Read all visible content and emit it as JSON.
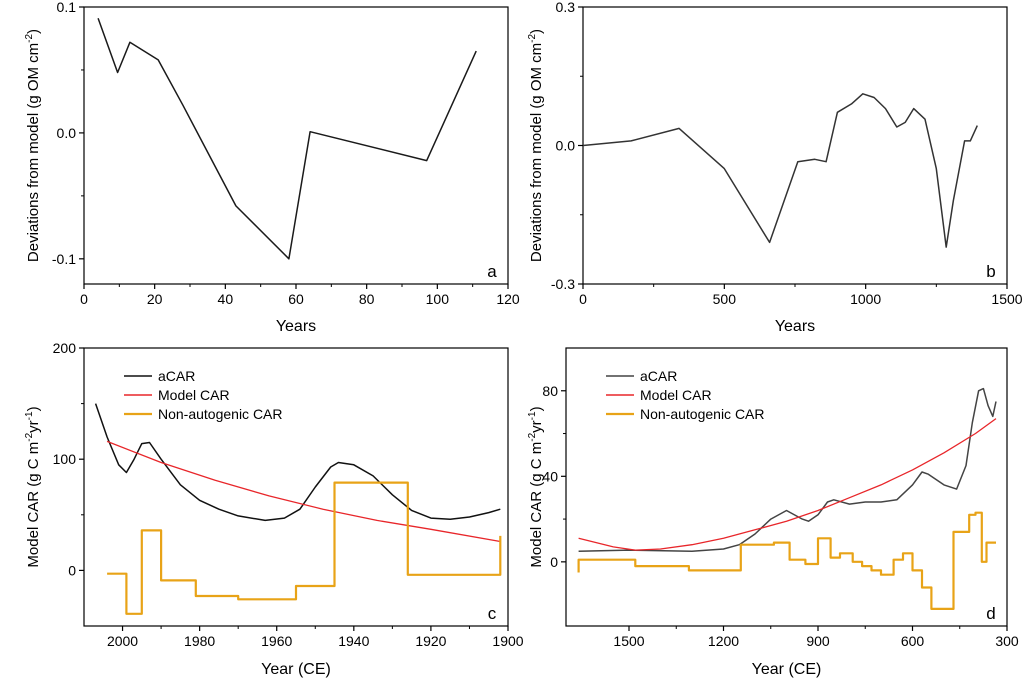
{
  "chart_data": [
    {
      "panel": "a",
      "type": "line",
      "xlabel": "Years",
      "ylabel": "Deviations from model (g OM cm",
      "ylabel_sup": "-2",
      "ylabel_end": ")",
      "xlim": [
        0,
        120
      ],
      "ylim": [
        -0.12,
        0.1
      ],
      "xticks": [
        0,
        20,
        40,
        60,
        80,
        100,
        120
      ],
      "xtick_labels": [
        "0",
        "20",
        "40",
        "60",
        "80",
        "100",
        "120"
      ],
      "yticks": [
        -0.1,
        0.0,
        0.1
      ],
      "ytick_labels": [
        "-0.1",
        "0.0",
        "0.1"
      ],
      "series": [
        {
          "color": "#1a1a1a",
          "x": [
            4,
            9.5,
            13,
            21,
            28,
            43,
            58,
            64,
            97,
            111
          ],
          "y": [
            0.091,
            0.048,
            0.072,
            0.058,
            0.022,
            -0.058,
            -0.1,
            0.001,
            -0.022,
            0.065
          ]
        }
      ]
    },
    {
      "panel": "b",
      "type": "line",
      "xlabel": "Years",
      "ylabel": "Deviations from model (g OM cm",
      "ylabel_sup": "-2",
      "ylabel_end": ")",
      "xlim": [
        0,
        1500
      ],
      "ylim": [
        -0.3,
        0.3
      ],
      "xticks": [
        0,
        500,
        1000,
        1500
      ],
      "xtick_labels": [
        "0",
        "500",
        "1000",
        "1500"
      ],
      "yticks": [
        -0.3,
        0.0,
        0.3
      ],
      "ytick_labels": [
        "-0.3",
        "0.0",
        "0.3"
      ],
      "series": [
        {
          "color": "#333333",
          "x": [
            0,
            170,
            340,
            500,
            660,
            760,
            820,
            860,
            900,
            950,
            990,
            1030,
            1070,
            1110,
            1140,
            1170,
            1210,
            1250,
            1285,
            1310,
            1350,
            1370,
            1395
          ],
          "y": [
            0.0,
            0.01,
            0.037,
            -0.05,
            -0.21,
            -0.035,
            -0.03,
            -0.035,
            0.072,
            0.09,
            0.112,
            0.104,
            0.08,
            0.04,
            0.05,
            0.08,
            0.057,
            -0.05,
            -0.22,
            -0.12,
            0.01,
            0.01,
            0.043
          ]
        }
      ]
    },
    {
      "panel": "c",
      "type": "line",
      "xlabel": "Year (CE)",
      "ylabel": "Model CAR (g C m",
      "ylabel_sup1": "-2",
      "ylabel_mid": "yr",
      "ylabel_sup2": "-1",
      "ylabel_end": ")",
      "xlim": [
        2010,
        1900
      ],
      "x_reversed": true,
      "ylim": [
        -50,
        200
      ],
      "xticks": [
        2000,
        1980,
        1960,
        1940,
        1920,
        1900
      ],
      "xtick_labels": [
        "2000",
        "1980",
        "1960",
        "1940",
        "1920",
        "1900"
      ],
      "yticks": [
        0,
        100,
        200
      ],
      "ytick_labels": [
        "0",
        "100",
        "200"
      ],
      "legend_position": "top-left",
      "series": [
        {
          "name": "aCAR",
          "color": "#111111",
          "x": [
            2007,
            2004,
            2001,
            1999,
            1997,
            1995,
            1993,
            1990,
            1985,
            1980,
            1975,
            1970,
            1963,
            1958,
            1954,
            1950,
            1946,
            1944,
            1940,
            1935,
            1930,
            1925,
            1920,
            1915,
            1910,
            1905,
            1902
          ],
          "y": [
            150,
            120,
            95,
            88,
            100,
            114,
            115,
            100,
            77,
            63,
            55,
            49,
            45,
            47,
            55,
            75,
            93,
            97,
            95,
            85,
            68,
            54,
            47,
            46,
            48,
            52,
            55
          ]
        },
        {
          "name": "Model CAR",
          "color": "#e8262a",
          "x": [
            2004,
            1990,
            1976,
            1962,
            1948,
            1934,
            1920,
            1902
          ],
          "y": [
            116,
            97,
            81,
            67,
            55,
            45,
            37,
            26
          ]
        },
        {
          "name": "Non-autogenic CAR",
          "color": "#e8a317",
          "step": true,
          "x": [
            2004,
            1999,
            1999,
            1995,
            1995,
            1990,
            1990,
            1981,
            1981,
            1970,
            1970,
            1955,
            1955,
            1945,
            1945,
            1926,
            1926,
            1902,
            1902
          ],
          "y": [
            -3,
            -3,
            -39,
            -39,
            36,
            36,
            -9,
            -9,
            -23,
            -23,
            -26,
            -26,
            -14,
            -14,
            79,
            79,
            -4,
            -4,
            31
          ]
        }
      ]
    },
    {
      "panel": "d",
      "type": "line",
      "xlabel": "Year (CE)",
      "ylabel": "Model CAR (g C m",
      "ylabel_sup1": "-2",
      "ylabel_mid": "yr",
      "ylabel_sup2": "-1",
      "ylabel_end": ")",
      "xlim": [
        1700,
        300
      ],
      "x_reversed": true,
      "ylim": [
        -30,
        100
      ],
      "xticks": [
        1500,
        1200,
        900,
        600,
        300
      ],
      "xtick_labels": [
        "1500",
        "1200",
        "900",
        "600",
        "300"
      ],
      "yticks": [
        0,
        40,
        80
      ],
      "ytick_labels": [
        "0",
        "40",
        "80"
      ],
      "legend_position": "top-left",
      "series": [
        {
          "name": "aCAR",
          "color": "#444444",
          "x": [
            1660,
            1500,
            1300,
            1200,
            1150,
            1100,
            1050,
            1000,
            950,
            930,
            900,
            870,
            850,
            800,
            750,
            700,
            650,
            600,
            570,
            550,
            500,
            460,
            430,
            410,
            390,
            375,
            360,
            345,
            335
          ],
          "y": [
            5,
            5.5,
            5,
            6,
            8,
            13,
            20,
            24,
            20,
            19,
            22,
            28,
            29,
            27,
            28,
            28,
            29,
            36,
            42,
            41,
            36,
            34,
            45,
            65,
            80,
            81,
            73,
            68,
            75
          ]
        },
        {
          "name": "Model CAR",
          "color": "#e8262a",
          "x": [
            1660,
            1550,
            1480,
            1400,
            1300,
            1200,
            1100,
            1000,
            900,
            800,
            700,
            600,
            500,
            400,
            335
          ],
          "y": [
            11,
            7,
            5.5,
            6,
            8,
            11,
            15,
            19,
            24,
            30,
            36,
            43,
            51,
            60,
            67
          ]
        },
        {
          "name": "Non-autogenic CAR",
          "color": "#e8a317",
          "step": true,
          "x": [
            1660,
            1660,
            1480,
            1480,
            1310,
            1310,
            1145,
            1145,
            1040,
            1040,
            990,
            990,
            940,
            940,
            900,
            900,
            860,
            860,
            830,
            830,
            790,
            790,
            760,
            760,
            730,
            730,
            700,
            700,
            660,
            660,
            630,
            630,
            600,
            600,
            570,
            570,
            540,
            540,
            510,
            510,
            470,
            470,
            420,
            420,
            400,
            400,
            380,
            380,
            365,
            365,
            350,
            350,
            335
          ],
          "y": [
            -5,
            1,
            1,
            -2,
            -2,
            -4,
            -4,
            8,
            8,
            9,
            9,
            1,
            1,
            -1,
            -1,
            11,
            11,
            2,
            2,
            4,
            4,
            0,
            0,
            -2,
            -2,
            -4,
            -4,
            -6,
            -6,
            1,
            1,
            4,
            4,
            -4,
            -4,
            -12,
            -12,
            -22,
            -22,
            -22,
            -22,
            14,
            14,
            22,
            22,
            23,
            23,
            0,
            0,
            9,
            9,
            9,
            9
          ]
        }
      ]
    }
  ],
  "panel_letters": [
    "a",
    "b",
    "c",
    "d"
  ]
}
